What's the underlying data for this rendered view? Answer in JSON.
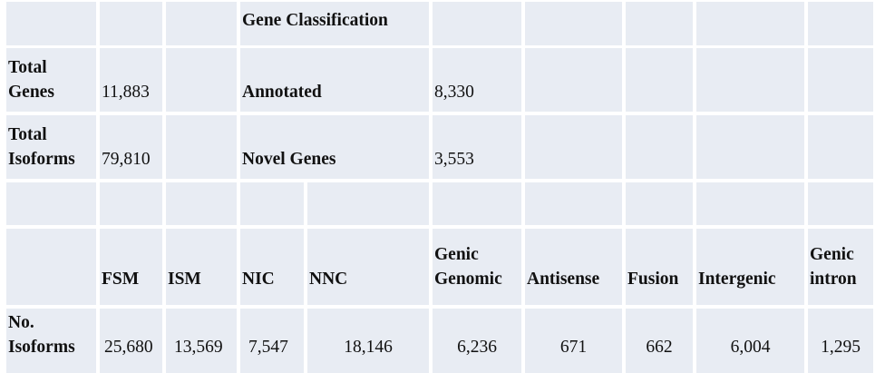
{
  "title": "Gene Classification",
  "summary": [
    {
      "label": "Total\nGenes",
      "value": "11,883",
      "sub_label": "Annotated",
      "sub_value": "8,330"
    },
    {
      "label": "Total\nIsoforms",
      "value": "79,810",
      "sub_label": "Novel Genes",
      "sub_value": "3,553"
    }
  ],
  "isoform_table": {
    "headers": [
      "FSM",
      "ISM",
      "NIC",
      "NNC",
      "Genic\nGenomic",
      "Antisense",
      "Fusion",
      "Intergenic",
      "Genic\nintron"
    ],
    "row_label": "No.\nIsoforms",
    "values": [
      "25,680",
      "13,569",
      "7,547",
      "18,146",
      "6,236",
      "671",
      "662",
      "6,004",
      "1,295"
    ]
  },
  "colors": {
    "cell_background": "#e8ecf3",
    "grid": "#ffffff"
  }
}
